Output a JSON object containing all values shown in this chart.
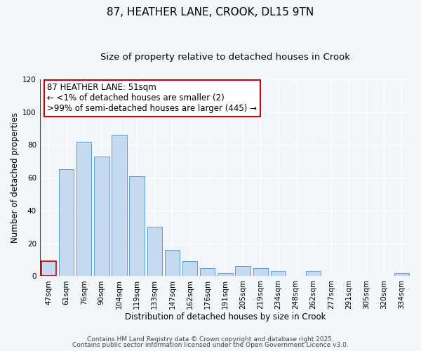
{
  "title": "87, HEATHER LANE, CROOK, DL15 9TN",
  "subtitle": "Size of property relative to detached houses in Crook",
  "xlabel": "Distribution of detached houses by size in Crook",
  "ylabel": "Number of detached properties",
  "categories": [
    "47sqm",
    "61sqm",
    "76sqm",
    "90sqm",
    "104sqm",
    "119sqm",
    "133sqm",
    "147sqm",
    "162sqm",
    "176sqm",
    "191sqm",
    "205sqm",
    "219sqm",
    "234sqm",
    "248sqm",
    "262sqm",
    "277sqm",
    "291sqm",
    "305sqm",
    "320sqm",
    "334sqm"
  ],
  "values": [
    9,
    65,
    82,
    73,
    86,
    61,
    30,
    16,
    9,
    5,
    2,
    6,
    5,
    3,
    0,
    3,
    0,
    0,
    0,
    0,
    2
  ],
  "bar_color": "#c5d9f1",
  "bar_edge_color": "#5b9bd5",
  "highlight_bar_index": 0,
  "highlight_bar_edge_color": "#cc0000",
  "ylim": [
    0,
    120
  ],
  "yticks": [
    0,
    20,
    40,
    60,
    80,
    100,
    120
  ],
  "annotation_line1": "87 HEATHER LANE: 51sqm",
  "annotation_line2": "← <1% of detached houses are smaller (2)",
  "annotation_line3": ">99% of semi-detached houses are larger (445) →",
  "annotation_box_edge_color": "#cc0000",
  "red_border_color": "#cc0000",
  "background_color": "#f2f5fa",
  "plot_bg_color": "#f2f5fa",
  "footer_line1": "Contains HM Land Registry data © Crown copyright and database right 2025.",
  "footer_line2": "Contains public sector information licensed under the Open Government Licence v3.0.",
  "title_fontsize": 11,
  "subtitle_fontsize": 9.5,
  "axis_label_fontsize": 8.5,
  "tick_fontsize": 7.5,
  "annotation_fontsize": 8.5,
  "footer_fontsize": 6.5
}
